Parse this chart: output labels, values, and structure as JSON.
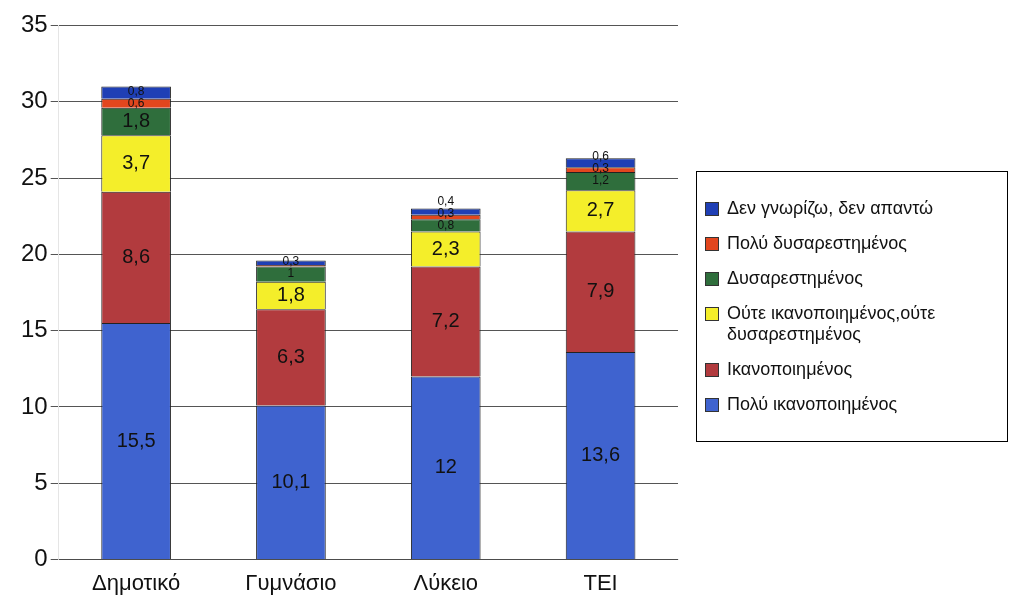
{
  "chart_data": {
    "type": "bar",
    "stacked": true,
    "categories": [
      "Δημοτικό",
      "Γυμνάσιο",
      "Λύκειο",
      "ΤΕΙ"
    ],
    "series": [
      {
        "name": "Πολύ ικανοποιημένος",
        "color": "#3f63cf",
        "values": [
          15.5,
          10.1,
          12,
          13.6
        ],
        "value_labels": [
          "15,5",
          "10,1",
          "12",
          "13,6"
        ]
      },
      {
        "name": "Ικανοποιημένος",
        "color": "#b23b3e",
        "values": [
          8.6,
          6.3,
          7.2,
          7.9
        ],
        "value_labels": [
          "8,6",
          "6,3",
          "7,2",
          "7,9"
        ]
      },
      {
        "name": "Ούτε ικανοποιημένος,ούτε δυσαρεστημένος",
        "color": "#f4ee2a",
        "values": [
          3.7,
          1.8,
          2.3,
          2.7
        ],
        "value_labels": [
          "3,7",
          "1,8",
          "2,3",
          "2,7"
        ]
      },
      {
        "name": "Δυσαρεστημένος",
        "color": "#2f6e3c",
        "values": [
          1.8,
          1,
          0.8,
          1.2
        ],
        "value_labels": [
          "1,8",
          "1",
          "0,8",
          "1,2"
        ]
      },
      {
        "name": "Πολύ δυσαρεστημένος",
        "color": "#e2461e",
        "values": [
          0.6,
          0.1,
          0.3,
          0.3
        ],
        "value_labels": [
          "0,6",
          null,
          "0,3",
          "0,3"
        ]
      },
      {
        "name": "Δεν γνωρίζω, δεν απαντώ",
        "color": "#1f3fb5",
        "values": [
          0.8,
          0.3,
          0.4,
          0.6
        ],
        "value_labels": [
          "0,8",
          "0,3",
          "0,4",
          "0,6"
        ]
      }
    ],
    "ylim": [
      0,
      35
    ],
    "yticks": [
      0,
      5,
      10,
      15,
      20,
      25,
      30,
      35
    ],
    "grid": "y",
    "legend": "right"
  }
}
